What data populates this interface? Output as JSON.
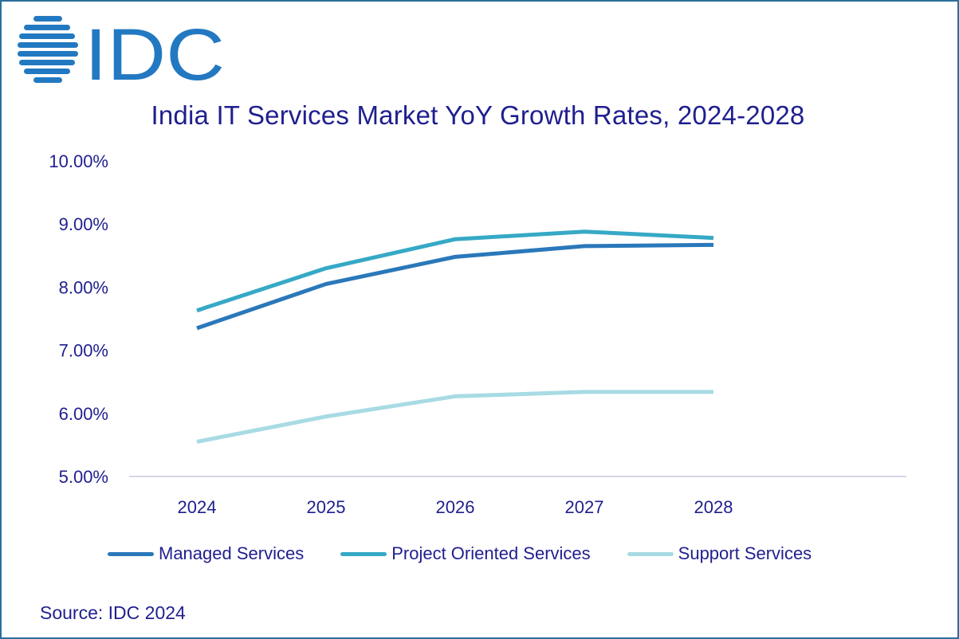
{
  "logo": {
    "text": "IDC",
    "color": "#2379c1"
  },
  "source": "Source: IDC 2024",
  "chart_data": {
    "type": "line",
    "title": "India IT Services Market YoY Growth Rates, 2024-2028",
    "xlabel": "",
    "ylabel": "",
    "categories": [
      "2024",
      "2025",
      "2026",
      "2027",
      "2028"
    ],
    "y_ticks": [
      "10.00%",
      "9.00%",
      "8.00%",
      "7.00%",
      "6.00%",
      "5.00%"
    ],
    "ylim": [
      5.0,
      10.0
    ],
    "grid": false,
    "legend_position": "bottom",
    "series": [
      {
        "name": "Managed Services",
        "color": "#2a78ba",
        "values": [
          7.35,
          8.05,
          8.48,
          8.65,
          8.67
        ]
      },
      {
        "name": "Project Oriented Services",
        "color": "#36a9c6",
        "values": [
          7.63,
          8.3,
          8.76,
          8.88,
          8.78
        ]
      },
      {
        "name": "Support Services",
        "color": "#a8dbe4",
        "values": [
          5.55,
          5.95,
          6.27,
          6.34,
          6.34
        ]
      }
    ]
  }
}
